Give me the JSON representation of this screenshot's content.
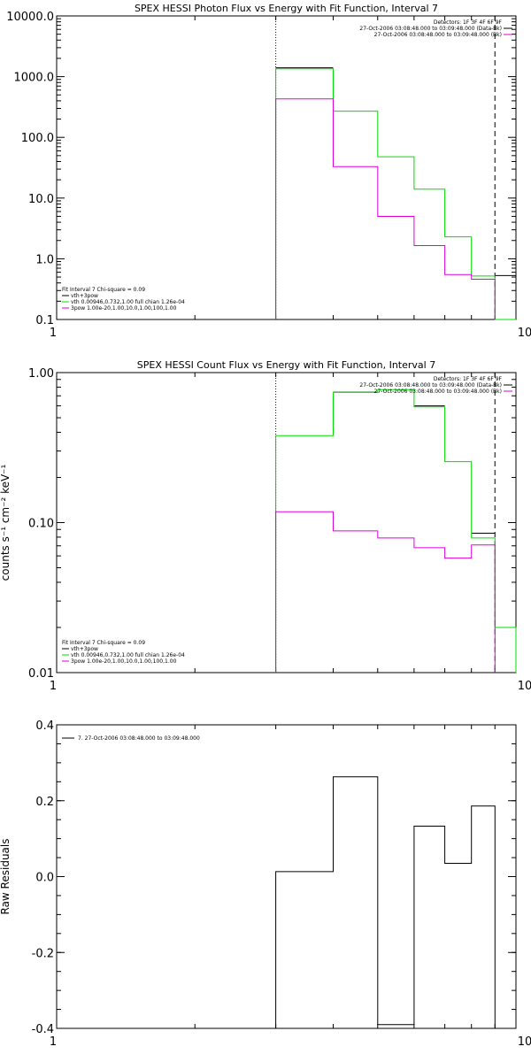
{
  "chart_data": [
    {
      "type": "line",
      "title": "SPEX HESSI Photon Flux vs Energy with Fit Function, Interval 7",
      "ylabel": "",
      "xlabel": "",
      "xscale": "log",
      "yscale": "log",
      "xlim": [
        1,
        10
      ],
      "ylim": [
        0.1,
        10000
      ],
      "xticks": [
        {
          "v": 1,
          "label": "1"
        },
        {
          "v": 10,
          "label": "10"
        }
      ],
      "yticks": [
        {
          "v": 0.1,
          "label": "0.1"
        },
        {
          "v": 1,
          "label": "1.0"
        },
        {
          "v": 10,
          "label": "10.0"
        },
        {
          "v": 100,
          "label": "100.0"
        },
        {
          "v": 1000,
          "label": "1000.0"
        },
        {
          "v": 10000,
          "label": "10000.0"
        }
      ],
      "vlines": [
        {
          "x": 3,
          "style": "dotted"
        },
        {
          "x": 9,
          "style": "dashed"
        }
      ],
      "bin_edges": [
        3,
        4,
        5,
        6,
        7,
        8,
        9,
        10
      ],
      "series": [
        {
          "name": "vth+3pow",
          "color": "#000000",
          "values": [
            1400,
            null,
            null,
            null,
            null,
            null,
            0.53
          ]
        },
        {
          "name": "vth 0.00946,0.732,1.00 full chian 1.26e-04",
          "color": "#00dd00",
          "values": [
            1350,
            270,
            48,
            14,
            2.3,
            0.52,
            0.1
          ]
        },
        {
          "name": "3pow 1.00e-20,1.00,10.0,1.00,100,1.00",
          "color": "#dd00dd",
          "values": [
            430,
            33,
            5,
            1.65,
            0.55,
            0.46,
            null
          ]
        }
      ],
      "legend_top": {
        "position": "top-right",
        "lines": [
          "Detectors: 1F 3F 4F 6F 9F",
          "27-Oct-2006 03:08:48.000 to 03:09:48.000 (Data-Bk)",
          "27-Oct-2006 03:08:48.000 to 03:09:48.000 (Bk)"
        ]
      },
      "legend_bottom": {
        "position": "bottom-left",
        "heading": "Fit Interval 7   Chi-square = 0.09"
      }
    },
    {
      "type": "line",
      "title": "SPEX HESSI Count Flux vs Energy with Fit Function, Interval 7",
      "ylabel": "counts s⁻¹ cm⁻² keV⁻¹",
      "xlabel": "",
      "xscale": "log",
      "yscale": "log",
      "xlim": [
        1,
        10
      ],
      "ylim": [
        0.01,
        1
      ],
      "xticks": [
        {
          "v": 1,
          "label": "1"
        },
        {
          "v": 10,
          "label": "10"
        }
      ],
      "yticks": [
        {
          "v": 0.01,
          "label": "0.01"
        },
        {
          "v": 0.1,
          "label": "0.10"
        },
        {
          "v": 1,
          "label": "1.00"
        }
      ],
      "vlines": [
        {
          "x": 3,
          "style": "dotted"
        },
        {
          "x": 9,
          "style": "dashed"
        }
      ],
      "bin_edges": [
        3,
        4,
        5,
        6,
        7,
        8,
        9,
        10
      ],
      "series": [
        {
          "name": "vth+3pow",
          "color": "#000000",
          "values": [
            null,
            0.74,
            null,
            0.6,
            null,
            0.085,
            null
          ]
        },
        {
          "name": "vth 0.00946,0.732,1.00 full chian 1.26e-04",
          "color": "#00dd00",
          "values": [
            0.38,
            0.74,
            0.77,
            0.59,
            0.255,
            0.079,
            0.02
          ]
        },
        {
          "name": "3pow 1.00e-20,1.00,10.0,1.00,100,1.00",
          "color": "#dd00dd",
          "values": [
            0.118,
            0.088,
            0.079,
            0.068,
            0.058,
            0.071,
            null
          ]
        }
      ],
      "legend_top": {
        "position": "top-right",
        "lines": [
          "Detectors: 1F 3F 4F 6F 9F",
          "27-Oct-2006 03:08:48.000 to 03:09:48.000 (Data-Bk)",
          "27-Oct-2006 03:08:48.000 to 03:09:48.000 (Bk)"
        ]
      },
      "legend_bottom": {
        "position": "bottom-left",
        "heading": "Fit Interval 7   Chi-square = 0.09"
      }
    },
    {
      "type": "line",
      "title": "",
      "ylabel": "Raw Residuals",
      "xlabel": "",
      "xscale": "log",
      "yscale": "linear",
      "xlim": [
        1,
        10
      ],
      "ylim": [
        -0.4,
        0.4
      ],
      "xticks": [
        {
          "v": 1,
          "label": "1"
        },
        {
          "v": 10,
          "label": "10"
        }
      ],
      "yticks": [
        {
          "v": -0.4,
          "label": "-0.4"
        },
        {
          "v": -0.2,
          "label": "-0.2"
        },
        {
          "v": 0,
          "label": "0.0"
        },
        {
          "v": 0.2,
          "label": "0.2"
        },
        {
          "v": 0.4,
          "label": "0.4"
        }
      ],
      "bin_edges": [
        3,
        4,
        5,
        6,
        7,
        8,
        9
      ],
      "series": [
        {
          "name": "7. 27-Oct-2006 03:08:48.000 to 03:09:48.000",
          "color": "#000000",
          "values": [
            0.013,
            0.263,
            -0.39,
            0.133,
            0.035,
            0.186
          ]
        }
      ],
      "legend_top": {
        "position": "top-left",
        "lines": [
          "7. 27-Oct-2006 03:08:48.000 to 03:09:48.000"
        ]
      }
    }
  ]
}
